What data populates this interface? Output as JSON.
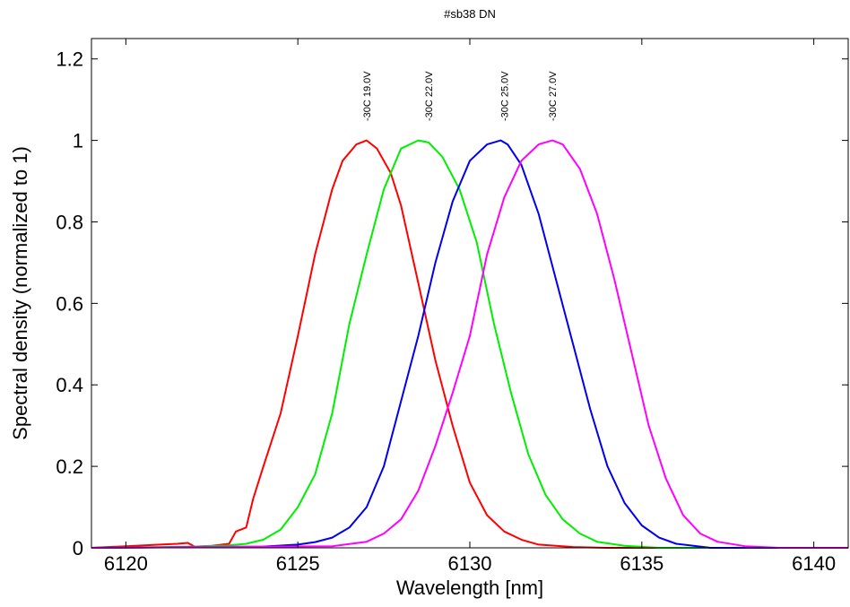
{
  "chart_data": {
    "type": "line",
    "title": "#sb38 DN",
    "xlabel": "Wavelength [nm]",
    "ylabel": "Spectral density (normalized to 1)",
    "xlim": [
      6119,
      6141
    ],
    "ylim": [
      0,
      1.25
    ],
    "xticks": [
      6120,
      6125,
      6130,
      6135,
      6140
    ],
    "xtick_labels": [
      "6120",
      "6125",
      "6130",
      "6135",
      "6140"
    ],
    "yticks": [
      0,
      0.2,
      0.4,
      0.6,
      0.8,
      1,
      1.2
    ],
    "ytick_labels": [
      "0",
      "0.2",
      "0.4",
      "0.6",
      "0.8",
      "1",
      "1.2"
    ],
    "grid": false,
    "series": [
      {
        "name": "-30C 19.0V",
        "color": "#ff0000",
        "x": [
          6119,
          6120,
          6121,
          6121.5,
          6121.8,
          6122,
          6122.5,
          6123,
          6123.2,
          6123.5,
          6123.7,
          6124,
          6124.5,
          6125,
          6125.5,
          6126,
          6126.3,
          6126.7,
          6127,
          6127.3,
          6127.7,
          6128,
          6128.5,
          6129,
          6129.5,
          6130,
          6130.5,
          6131,
          6131.5,
          6132,
          6133,
          6134,
          6141
        ],
        "y": [
          0,
          0.004,
          0.008,
          0.01,
          0.012,
          0.003,
          0.005,
          0.01,
          0.04,
          0.05,
          0.12,
          0.2,
          0.33,
          0.52,
          0.72,
          0.88,
          0.95,
          0.99,
          1.0,
          0.98,
          0.92,
          0.84,
          0.65,
          0.46,
          0.3,
          0.16,
          0.08,
          0.04,
          0.02,
          0.008,
          0.002,
          0,
          0
        ]
      },
      {
        "name": "-30C 22.0V",
        "color": "#00ee00",
        "x": [
          6119,
          6122,
          6123,
          6123.5,
          6124,
          6124.5,
          6125,
          6125.5,
          6126,
          6126.5,
          6127,
          6127.5,
          6128,
          6128.5,
          6128.8,
          6129.2,
          6129.7,
          6130.2,
          6130.7,
          6131.2,
          6131.7,
          6132.2,
          6132.7,
          6133.2,
          6133.7,
          6134.5,
          6135.5,
          6141
        ],
        "y": [
          0,
          0.003,
          0.006,
          0.01,
          0.02,
          0.045,
          0.1,
          0.18,
          0.33,
          0.55,
          0.72,
          0.88,
          0.98,
          1.0,
          0.995,
          0.96,
          0.88,
          0.75,
          0.55,
          0.38,
          0.23,
          0.13,
          0.07,
          0.035,
          0.015,
          0.005,
          0,
          0
        ]
      },
      {
        "name": "-30C 25.0V",
        "color": "#0000ee",
        "x": [
          6119,
          6124,
          6125,
          6125.5,
          6126,
          6126.5,
          6127,
          6127.5,
          6128,
          6128.5,
          6129,
          6129.5,
          6130,
          6130.5,
          6130.9,
          6131.1,
          6131.5,
          6132,
          6132.5,
          6133,
          6133.5,
          6134,
          6134.5,
          6135,
          6135.5,
          6136,
          6137,
          6141
        ],
        "y": [
          0,
          0.003,
          0.008,
          0.014,
          0.025,
          0.05,
          0.1,
          0.2,
          0.36,
          0.52,
          0.7,
          0.85,
          0.95,
          0.99,
          1.0,
          0.99,
          0.94,
          0.82,
          0.66,
          0.5,
          0.34,
          0.2,
          0.11,
          0.055,
          0.025,
          0.01,
          0,
          0
        ]
      },
      {
        "name": "-30C 27.0V",
        "color": "#ff00ff",
        "x": [
          6119,
          6126,
          6127,
          6127.5,
          6128,
          6128.5,
          6129,
          6129.5,
          6130,
          6130.5,
          6131,
          6131.5,
          6132,
          6132.4,
          6132.7,
          6133.2,
          6133.7,
          6134.2,
          6134.7,
          6135.2,
          6135.7,
          6136.2,
          6136.7,
          6137.2,
          6138,
          6139,
          6141
        ],
        "y": [
          0,
          0.004,
          0.015,
          0.035,
          0.07,
          0.14,
          0.25,
          0.38,
          0.52,
          0.72,
          0.86,
          0.95,
          0.99,
          1.0,
          0.99,
          0.93,
          0.82,
          0.66,
          0.48,
          0.3,
          0.17,
          0.08,
          0.035,
          0.015,
          0.004,
          0,
          0
        ]
      }
    ],
    "peak_labels": [
      {
        "text": "-30C 19.0V",
        "x": 6127
      },
      {
        "text": "-30C 22.0V",
        "x": 6128.8
      },
      {
        "text": "-30C 25.0V",
        "x": 6131
      },
      {
        "text": "-30C 27.0V",
        "x": 6132.4
      }
    ]
  }
}
